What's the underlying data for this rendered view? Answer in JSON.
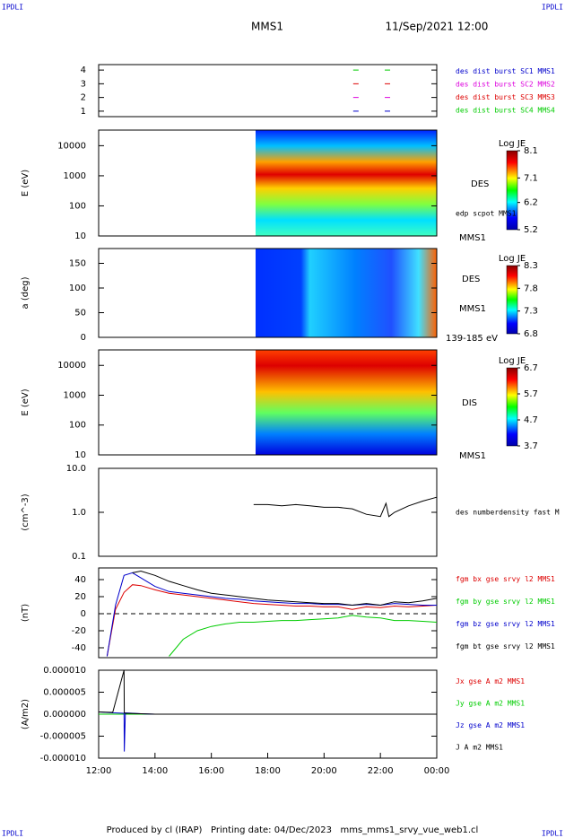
{
  "header": {
    "corner_tl": "IPDLI",
    "corner_tr": "IPDLI",
    "corner_bl": "IPDLI",
    "corner_br": "IPDLI",
    "spacecraft": "MMS1",
    "date": "11/Sep/2021 12:00"
  },
  "footer": "Produced by cl (IRAP)   Printing date: 04/Dec/2023   mms_mms1_srvy_vue_web1.cl",
  "chart_data": [
    {
      "type": "scatter",
      "xlim": [
        12,
        24
      ],
      "ylim": [
        0.6,
        4.4
      ],
      "yticks": [
        1,
        2,
        3,
        4
      ],
      "series": [
        {
          "name": "des dist burst SC1 MMS1",
          "color": "#0000cc",
          "x": [
            21.13,
            22.25
          ],
          "values": [
            1,
            1
          ]
        },
        {
          "name": "des dist burst SC2 MMS2",
          "color": "#dd00dd",
          "x": [
            21.13,
            22.25
          ],
          "values": [
            2,
            2
          ]
        },
        {
          "name": "des dist burst SC3 MMS3",
          "color": "#dd0000",
          "x": [
            21.13,
            22.25
          ],
          "values": [
            3,
            3
          ]
        },
        {
          "name": "des dist burst SC4 MMS4",
          "color": "#00cc00",
          "x": [
            21.13,
            22.25
          ],
          "values": [
            4,
            4
          ]
        }
      ]
    },
    {
      "type": "heatmap",
      "ylabel": "E (eV)",
      "log": true,
      "ylim": [
        10,
        33000
      ],
      "yticks": [
        10,
        100,
        1000,
        10000
      ],
      "labels": [
        "DES",
        "MMS1",
        "edp scpot MMS1"
      ],
      "colorbar_title": "Log JE",
      "clim": [
        5.2,
        8.1
      ],
      "cticks": [
        5.2,
        6.2,
        7.1,
        8.1
      ]
    },
    {
      "type": "heatmap",
      "ylabel": "a (deg)",
      "ylim": [
        0,
        180
      ],
      "yticks": [
        0,
        50,
        100,
        150
      ],
      "labels": [
        "DES",
        "MMS1",
        "139-185 eV"
      ],
      "colorbar_title": "Log JE",
      "clim": [
        6.8,
        8.3
      ],
      "cticks": [
        6.8,
        7.3,
        7.8,
        8.3
      ]
    },
    {
      "type": "heatmap",
      "ylabel": "E (eV)",
      "log": true,
      "ylim": [
        10,
        33000
      ],
      "yticks": [
        10,
        100,
        1000,
        10000
      ],
      "labels": [
        "DIS",
        "MMS1"
      ],
      "colorbar_title": "Log JE",
      "clim": [
        3.7,
        6.7
      ],
      "cticks": [
        3.7,
        4.7,
        5.7,
        6.7
      ]
    },
    {
      "type": "line",
      "ylabel": "(cm^-3)",
      "log": true,
      "xlim": [
        12,
        24
      ],
      "ylim": [
        0.1,
        10
      ],
      "yticks": [
        {
          "value": 0.1,
          "label": "0.1"
        },
        {
          "value": 1,
          "label": "1.0"
        },
        {
          "value": 10,
          "label": "10.0"
        }
      ],
      "x": [
        17.5,
        18,
        18.5,
        19,
        19.5,
        20,
        20.5,
        21,
        21.5,
        22,
        22.2,
        22.3,
        22.5,
        23,
        23.5,
        24
      ],
      "series": [
        {
          "name": "des numberdensity fast M",
          "color": "#000000",
          "values": [
            1.5,
            1.5,
            1.4,
            1.5,
            1.4,
            1.3,
            1.3,
            1.2,
            0.9,
            0.8,
            1.6,
            0.8,
            1.0,
            1.4,
            1.8,
            2.2
          ]
        }
      ]
    },
    {
      "type": "line",
      "ylabel": "(nT)",
      "xlim": [
        12,
        24
      ],
      "ylim": [
        -51.6,
        53.7
      ],
      "yticks": [
        -40,
        -20,
        0,
        20,
        40
      ],
      "zero_line": true,
      "x": [
        12.0,
        12.3,
        12.6,
        12.9,
        13.2,
        13.5,
        14,
        14.5,
        15,
        15.5,
        16,
        16.5,
        17,
        17.5,
        18,
        18.5,
        19,
        19.5,
        20,
        20.5,
        21,
        21.5,
        22,
        22.5,
        23,
        23.5,
        24
      ],
      "series": [
        {
          "name": "fgm bx gse srvy l2 MMS1",
          "color": "#dd0000",
          "values": [
            null,
            -50,
            5,
            25,
            34,
            33,
            28,
            24,
            22,
            20,
            18,
            16,
            14,
            12,
            11,
            10,
            9,
            9,
            8,
            8,
            5,
            8,
            7,
            9,
            8,
            9,
            10
          ]
        },
        {
          "name": "fgm by gse srvy l2 MMS1",
          "color": "#00cc00",
          "values": [
            null,
            null,
            null,
            null,
            null,
            null,
            null,
            -50,
            -30,
            -20,
            -15,
            -12,
            -10,
            -10,
            -9,
            -8,
            -8,
            -7,
            -6,
            -5,
            -2,
            -4,
            -5,
            -8,
            -8,
            -9,
            -10
          ]
        },
        {
          "name": "fgm bz gse srvy l2 MMS1",
          "color": "#0000cc",
          "values": [
            null,
            -50,
            10,
            45,
            48,
            42,
            32,
            26,
            24,
            22,
            20,
            18,
            17,
            15,
            14,
            13,
            12,
            12,
            11,
            11,
            10,
            11,
            10,
            12,
            11,
            10,
            10
          ]
        },
        {
          "name": "fgm bt gse srvy l2 MMS1",
          "color": "#000000",
          "values": [
            null,
            null,
            null,
            null,
            48,
            50,
            45,
            38,
            33,
            28,
            24,
            22,
            20,
            18,
            16,
            15,
            14,
            13,
            12,
            12,
            10,
            12,
            10,
            14,
            13,
            15,
            18
          ]
        }
      ]
    },
    {
      "type": "line",
      "ylabel": "(A/m2)",
      "xlim": [
        12,
        24
      ],
      "ylim": [
        -1e-05,
        1e-05
      ],
      "yticks": [
        {
          "value": -1e-05,
          "label": "-0.000010"
        },
        {
          "value": -5e-06,
          "label": "-0.000005"
        },
        {
          "value": 0,
          "label": "0.000000"
        },
        {
          "value": 5e-06,
          "label": "0.000005"
        },
        {
          "value": 1e-05,
          "label": "0.000010"
        }
      ],
      "xticks": [
        {
          "value": 12,
          "label": "12:00"
        },
        {
          "value": 14,
          "label": "14:00"
        },
        {
          "value": 16,
          "label": "16:00"
        },
        {
          "value": 18,
          "label": "18:00"
        },
        {
          "value": 20,
          "label": "20:00"
        },
        {
          "value": 22,
          "label": "22:00"
        },
        {
          "value": 24,
          "label": "00:00"
        }
      ],
      "x": [
        12,
        12.5,
        12.9,
        12.91,
        12.95,
        13.5,
        14,
        16,
        18,
        20,
        22,
        24
      ],
      "series": [
        {
          "name": "Jx gse A m2 MMS1",
          "color": "#dd0000",
          "values": [
            0,
            0,
            0,
            0,
            0,
            0,
            0,
            0,
            0,
            0,
            0,
            0
          ]
        },
        {
          "name": "Jy gse A m2 MMS1",
          "color": "#00cc00",
          "values": [
            0,
            0,
            0,
            0,
            0,
            0,
            0,
            0,
            0,
            0,
            0,
            0
          ]
        },
        {
          "name": "Jz gse A m2 MMS1",
          "color": "#0000cc",
          "values": [
            5e-07,
            3e-07,
            2e-07,
            -8.5e-06,
            3e-07,
            1e-07,
            0,
            0,
            0,
            0,
            0,
            0
          ]
        },
        {
          "name": "J A m2 MMS1",
          "color": "#000000",
          "values": [
            5e-07,
            4e-07,
            1e-05,
            3e-07,
            2e-07,
            1e-07,
            0,
            0,
            0,
            0,
            0,
            0
          ]
        }
      ]
    }
  ]
}
